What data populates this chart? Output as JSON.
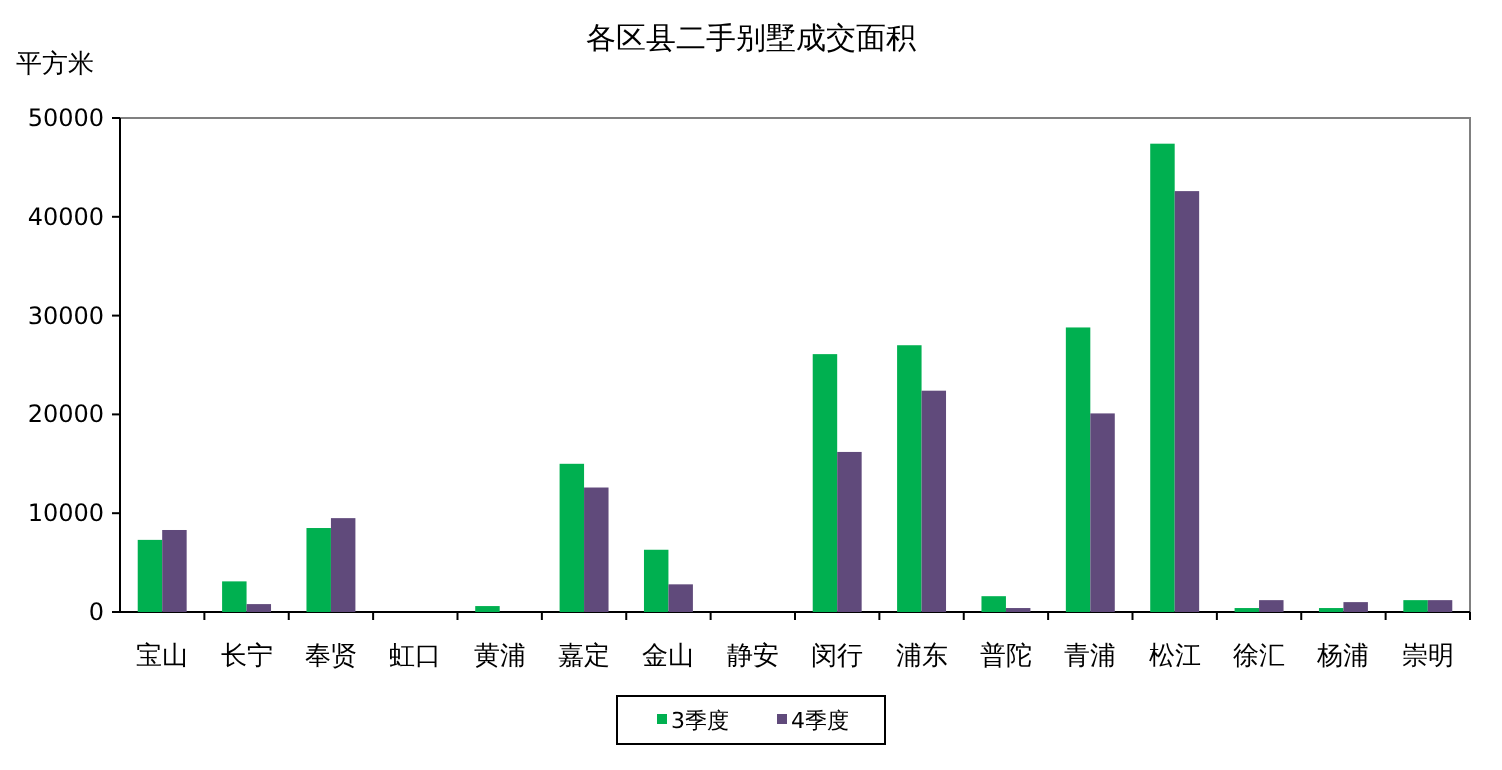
{
  "chart_data": {
    "type": "bar",
    "title": "各区县二手别墅成交面积",
    "ylabel": "平方米",
    "categories": [
      "宝山",
      "长宁",
      "奉贤",
      "虹口",
      "黄浦",
      "嘉定",
      "金山",
      "静安",
      "闵行",
      "浦东",
      "普陀",
      "青浦",
      "松江",
      "徐汇",
      "杨浦",
      "崇明"
    ],
    "series": [
      {
        "name": "3季度",
        "color": "#00b050",
        "values": [
          7300,
          3100,
          8500,
          0,
          600,
          15000,
          6300,
          0,
          26100,
          27000,
          1600,
          28800,
          47400,
          400,
          400,
          1200
        ]
      },
      {
        "name": "4季度",
        "color": "#604a7b",
        "values": [
          8300,
          800,
          9500,
          0,
          0,
          12600,
          2800,
          0,
          16200,
          22400,
          400,
          20100,
          42600,
          1200,
          1000,
          1200
        ]
      }
    ],
    "ylim": [
      0,
      50000
    ],
    "yticks": [
      0,
      10000,
      20000,
      30000,
      40000,
      50000
    ],
    "legend": "bottom"
  }
}
